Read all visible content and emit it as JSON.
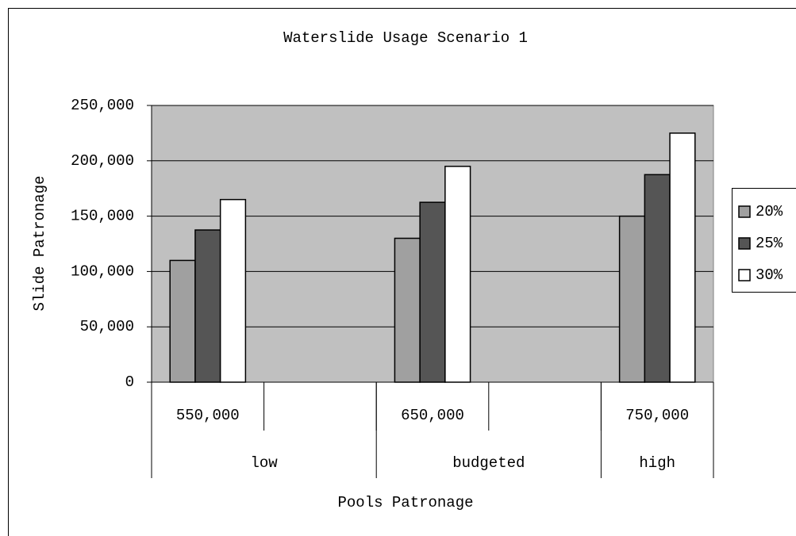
{
  "chart_data": {
    "type": "bar",
    "title": "Waterslide Usage Scenario 1",
    "x_label": "Pools Patronage",
    "y_label": "Slide Patronage",
    "categories": [
      "550,000",
      null,
      "650,000",
      null,
      "750,000"
    ],
    "group_labels": [
      "low",
      "budgeted",
      "high"
    ],
    "group_sizes": [
      2,
      2,
      1
    ],
    "series": [
      {
        "name": "20%",
        "color": "#a0a0a0",
        "values": [
          110000,
          null,
          130000,
          null,
          150000
        ]
      },
      {
        "name": "25%",
        "color": "#555555",
        "values": [
          137500,
          null,
          162500,
          null,
          187500
        ]
      },
      {
        "name": "30%",
        "color": "#ffffff",
        "values": [
          165000,
          null,
          195000,
          null,
          225000
        ]
      }
    ],
    "ylim": [
      0,
      250000
    ],
    "yticks": [
      0,
      {
        "value": 50000,
        "label": "50,000"
      },
      {
        "value": 100000,
        "label": "100,000"
      },
      {
        "value": 150000,
        "label": "150,000"
      },
      {
        "value": 200000,
        "label": "200,000"
      },
      {
        "value": 250000,
        "label": "250,000"
      }
    ],
    "grid": true,
    "plot_background": "#c0c0c0",
    "legend": "right"
  }
}
